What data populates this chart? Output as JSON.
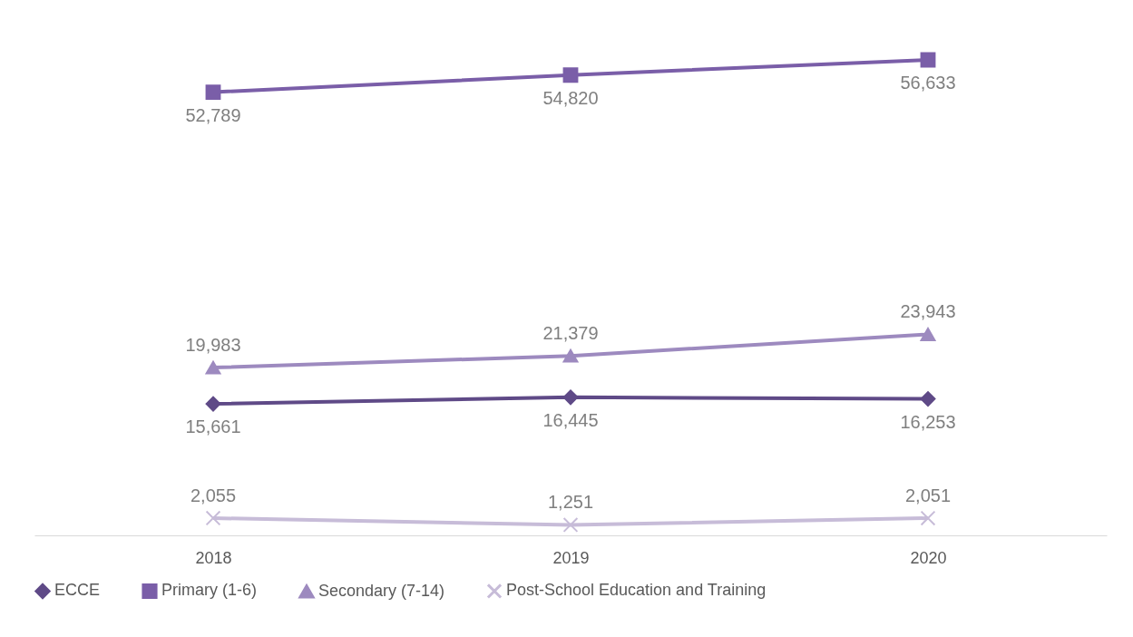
{
  "chart_data": {
    "type": "line",
    "categories": [
      "2018",
      "2019",
      "2020"
    ],
    "series": [
      {
        "name": "ECCE",
        "color": "#5f4a87",
        "marker": "diamond",
        "values": [
          15661,
          16445,
          16253
        ],
        "value_labels": [
          "15,661",
          "16,445",
          "16,253"
        ]
      },
      {
        "name": "Primary (1-6)",
        "color": "#7a5ea8",
        "marker": "square",
        "values": [
          52789,
          54820,
          56633
        ],
        "value_labels": [
          "52,789",
          "54,820",
          "56,633"
        ]
      },
      {
        "name": "Secondary (7-14)",
        "color": "#9d8abf",
        "marker": "triangle",
        "values": [
          19983,
          21379,
          23943
        ],
        "value_labels": [
          "19,983",
          "21,379",
          "23,943"
        ]
      },
      {
        "name": "Post-School Education and Training",
        "color": "#c7bcd8",
        "marker": "cross",
        "values": [
          2055,
          1251,
          2051
        ],
        "value_labels": [
          "2,055",
          "1,251",
          "2,051"
        ]
      }
    ],
    "tick_labels": "x",
    "legend": "bottom"
  }
}
